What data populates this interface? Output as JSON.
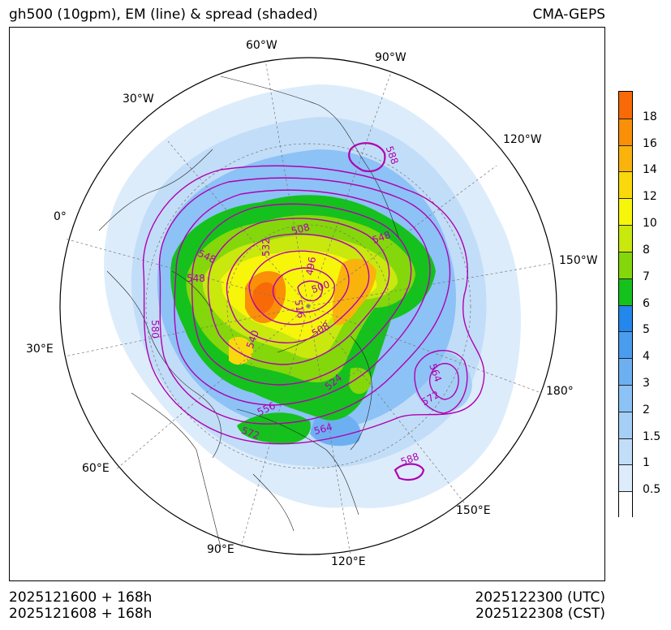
{
  "header": {
    "title": "gh500 (10gpm), EM (line) & spread (shaded)",
    "source": "CMA-GEPS"
  },
  "footer": {
    "init_utc": "2025121600 + 168h",
    "init_cst": "2025121608 + 168h",
    "valid_utc": "2025122300 (UTC)",
    "valid_cst": "2025122308 (CST)"
  },
  "longitude_labels": [
    "60°W",
    "90°W",
    "30°W",
    "120°W",
    "0°",
    "150°W",
    "30°E",
    "180°",
    "60°E",
    "150°E",
    "90°E",
    "120°E"
  ],
  "contour_labels": [
    "588",
    "548",
    "548",
    "508",
    "532",
    "548",
    "496",
    "500",
    "516",
    "508",
    "540",
    "580",
    "564",
    "572",
    "524",
    "556",
    "564",
    "572",
    "588"
  ],
  "colorbar": {
    "levels": [
      "0.5",
      "1",
      "1.5",
      "2",
      "3",
      "4",
      "5",
      "6",
      "7",
      "8",
      "10",
      "12",
      "14",
      "16",
      "18"
    ],
    "colors": [
      "#ffffff",
      "#dcecfb",
      "#c2ddf8",
      "#a6cff7",
      "#8cc2f6",
      "#6db0f2",
      "#4a9cee",
      "#2387ec",
      "#15c11c",
      "#84d70a",
      "#c8e80e",
      "#f7f50a",
      "#f9d90c",
      "#fab30c",
      "#fa8f08",
      "#f86a07"
    ]
  },
  "colors": {
    "contour": "#b000b0"
  }
}
